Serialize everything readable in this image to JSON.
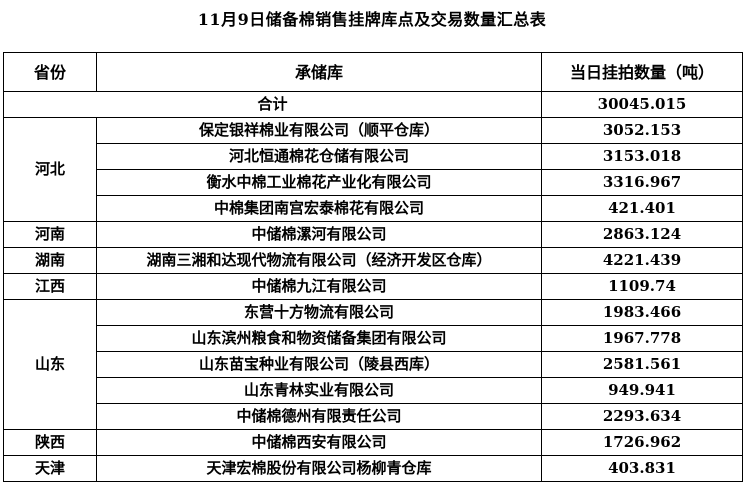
{
  "title": "11月9日储备棉销售挂牌库点及交易数量汇总表",
  "headers": {
    "province": "省份",
    "warehouse": "承储库",
    "quantity": "当日挂拍数量（吨）"
  },
  "total": {
    "label": "合计",
    "value": "30045.015"
  },
  "groups": [
    {
      "province": "河北",
      "rows": [
        {
          "warehouse": "保定银祥棉业有限公司（顺平仓库）",
          "quantity": "3052.153"
        },
        {
          "warehouse": "河北恒通棉花仓储有限公司",
          "quantity": "3153.018"
        },
        {
          "warehouse": "衡水中棉工业棉花产业化有限公司",
          "quantity": "3316.967"
        },
        {
          "warehouse": "中棉集团南宫宏泰棉花有限公司",
          "quantity": "421.401"
        }
      ]
    },
    {
      "province": "河南",
      "rows": [
        {
          "warehouse": "中储棉漯河有限公司",
          "quantity": "2863.124"
        }
      ]
    },
    {
      "province": "湖南",
      "rows": [
        {
          "warehouse": "湖南三湘和达现代物流有限公司（经济开发区仓库）",
          "quantity": "4221.439"
        }
      ]
    },
    {
      "province": "江西",
      "rows": [
        {
          "warehouse": "中储棉九江有限公司",
          "quantity": "1109.74"
        }
      ]
    },
    {
      "province": "山东",
      "rows": [
        {
          "warehouse": "东营十方物流有限公司",
          "quantity": "1983.466"
        },
        {
          "warehouse": "山东滨州粮食和物资储备集团有限公司",
          "quantity": "1967.778"
        },
        {
          "warehouse": "山东苗宝种业有限公司（陵县西库）",
          "quantity": "2581.561"
        },
        {
          "warehouse": "山东青林实业有限公司",
          "quantity": "949.941"
        },
        {
          "warehouse": "中储棉德州有限责任公司",
          "quantity": "2293.634"
        }
      ]
    },
    {
      "province": "陕西",
      "rows": [
        {
          "warehouse": "中储棉西安有限公司",
          "quantity": "1726.962"
        }
      ]
    },
    {
      "province": "天津",
      "rows": [
        {
          "warehouse": "天津宏棉股份有限公司杨柳青仓库",
          "quantity": "403.831"
        }
      ]
    }
  ]
}
